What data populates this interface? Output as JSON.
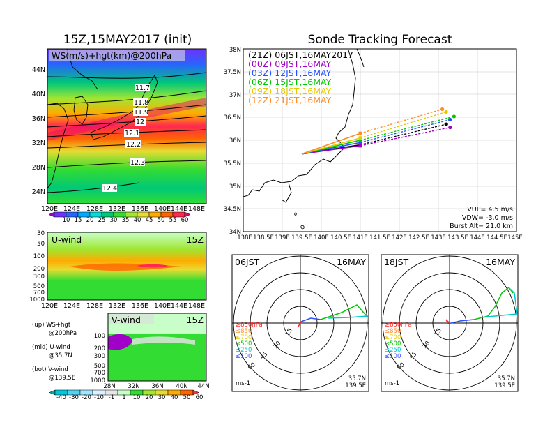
{
  "left": {
    "title": "15Z,15MAY2017 (init)",
    "map_label": "WS(m/s)+hgt(km)@200hPa",
    "lat_ticks": [
      "44N",
      "40N",
      "36N",
      "32N",
      "28N",
      "24N"
    ],
    "lon_ticks": [
      "120E",
      "124E",
      "128E",
      "132E",
      "136E",
      "140E",
      "144E",
      "148E"
    ],
    "contour_labels": [
      "11.7",
      "11.8",
      "11.9",
      "12",
      "12.1",
      "12.2",
      "12.3",
      "12.4"
    ],
    "ws_colorbar": [
      "10",
      "15",
      "20",
      "25",
      "30",
      "35",
      "40",
      "45",
      "50",
      "55",
      "60"
    ],
    "ws_colors": [
      "#a000c8",
      "#6e32ff",
      "#2864ff",
      "#00aaff",
      "#00dcdc",
      "#00c878",
      "#32dc32",
      "#a0e632",
      "#e6dc32",
      "#ffaa00",
      "#ff6400",
      "#ff2850",
      "#e6007a"
    ],
    "uwind_label": "U-wind",
    "uwind_time": "15Z",
    "uwind_pres": [
      "30",
      "50",
      "100",
      "200",
      "300",
      "500",
      "700",
      "1000"
    ],
    "vwind_label": "V-wind",
    "vwind_time": "15Z",
    "vwind_pres": [
      "100",
      "200",
      "300",
      "500",
      "700",
      "1000"
    ],
    "vwind_lat_ticks": [
      "28N",
      "32N",
      "36N",
      "40N",
      "44N"
    ],
    "notes": [
      {
        "a": "(up) WS+hgt",
        "b": "@200hPa"
      },
      {
        "a": "(mid) U-wind",
        "b": "@35.7N"
      },
      {
        "a": "(bot) V-wind",
        "b": "@139.5E"
      }
    ],
    "uv_colorbar": [
      "-40",
      "-30",
      "-20",
      "-10",
      "-1",
      "1",
      "10",
      "20",
      "30",
      "40",
      "50",
      "60"
    ],
    "uv_colors": [
      "#00aaaa",
      "#00c8dc",
      "#50d2f0",
      "#a0e6ff",
      "#dcf0ff",
      "#e6e6e6",
      "#c8ffc8",
      "#32dc32",
      "#a0e632",
      "#e6dc32",
      "#ffaa00",
      "#ff6400",
      "#ff2850"
    ]
  },
  "right": {
    "title": "Sonde Tracking Forecast",
    "lat_ticks": [
      "38N",
      "37.5N",
      "37N",
      "36.5N",
      "36N",
      "35.5N",
      "35N",
      "34.5N",
      "34N"
    ],
    "lon_ticks": [
      "138E",
      "138.5E",
      "139E",
      "139.5E",
      "140E",
      "140.5E",
      "141E",
      "141.5E",
      "142E",
      "142.5E",
      "143E",
      "143.5E",
      "144E",
      "144.5E",
      "145E"
    ],
    "legend": [
      {
        "utc": "(21Z)",
        "jst": "06JST,16MAY2017",
        "color": "#000000"
      },
      {
        "utc": "(00Z)",
        "jst": "09JST,16MAY",
        "color": "#a000c8"
      },
      {
        "utc": "(03Z)",
        "jst": "12JST,16MAY",
        "color": "#2850ff"
      },
      {
        "utc": "(06Z)",
        "jst": "15JST,16MAY",
        "color": "#00c800"
      },
      {
        "utc": "(09Z)",
        "jst": "18JST,16MAY",
        "color": "#e6c800"
      },
      {
        "utc": "(12Z)",
        "jst": "21JST,16MAY",
        "color": "#ff8c28"
      }
    ],
    "vup": "VUP= 4.5 m/s",
    "vdw": "VDW= -3.0 m/s",
    "burst": "Burst Alt= 21.0 km"
  },
  "hodographs": [
    {
      "time": "06JST",
      "date": "16MAY",
      "lat": "35.7N",
      "lon": "139.5E",
      "unit": "ms-1"
    },
    {
      "time": "18JST",
      "date": "16MAY",
      "lat": "35.7N",
      "lon": "139.5E",
      "unit": "ms-1"
    }
  ],
  "hodo_rings": [
    "15",
    "30",
    "45",
    "60"
  ],
  "hodo_legend": [
    {
      "label": "≥850hPa",
      "color": "#ff2828"
    },
    {
      "label": "≤850",
      "color": "#ff8c28"
    },
    {
      "label": "≤700",
      "color": "#e6c800"
    },
    {
      "label": "≤500",
      "color": "#00c800"
    },
    {
      "label": "≤250",
      "color": "#00c8c8"
    },
    {
      "label": "≤100",
      "color": "#2850ff"
    }
  ],
  "chart_data": [
    {
      "type": "heatmap",
      "title": "15Z,15MAY2017 (init)",
      "label": "WS(m/s)+hgt(km)@200hPa",
      "x_range": [
        "120E",
        "148E"
      ],
      "y_range": [
        "22N",
        "47N"
      ],
      "color_levels": [
        10,
        15,
        20,
        25,
        30,
        35,
        40,
        45,
        50,
        55,
        60
      ],
      "hgt_contours_km": [
        11.7,
        11.8,
        11.9,
        12,
        12.1,
        12.2,
        12.3,
        12.4
      ]
    },
    {
      "type": "heatmap",
      "label": "U-wind",
      "x_range": [
        "120E",
        "148E"
      ],
      "y_levels_hpa": [
        30,
        50,
        100,
        200,
        300,
        500,
        700,
        1000
      ]
    },
    {
      "type": "heatmap",
      "label": "V-wind",
      "x_range": [
        "28N",
        "44N"
      ],
      "y_levels_hpa": [
        100,
        200,
        300,
        500,
        700,
        1000
      ]
    },
    {
      "type": "line",
      "title": "Sonde Tracking Forecast",
      "xlim": [
        138,
        145
      ],
      "ylim": [
        34,
        38
      ],
      "launch": [
        139.5,
        35.7
      ],
      "series": [
        {
          "name": "(21Z) 06JST,16MAY2017",
          "x": [
            139.5,
            141.0,
            143.2
          ],
          "y": [
            35.7,
            35.9,
            36.35
          ]
        },
        {
          "name": "(00Z) 09JST,16MAY",
          "x": [
            139.5,
            141.0,
            143.3
          ],
          "y": [
            35.7,
            35.88,
            36.28
          ]
        },
        {
          "name": "(03Z) 12JST,16MAY",
          "x": [
            139.5,
            141.0,
            143.3
          ],
          "y": [
            35.7,
            35.95,
            36.45
          ]
        },
        {
          "name": "(06Z) 15JST,16MAY",
          "x": [
            139.5,
            141.0,
            143.4
          ],
          "y": [
            35.7,
            36.0,
            36.52
          ]
        },
        {
          "name": "(09Z) 18JST,16MAY",
          "x": [
            139.5,
            141.0,
            143.2
          ],
          "y": [
            35.7,
            36.05,
            36.62
          ]
        },
        {
          "name": "(12Z) 21JST,16MAY",
          "x": [
            139.5,
            141.0,
            143.1
          ],
          "y": [
            35.7,
            36.15,
            36.68
          ]
        }
      ]
    }
  ]
}
